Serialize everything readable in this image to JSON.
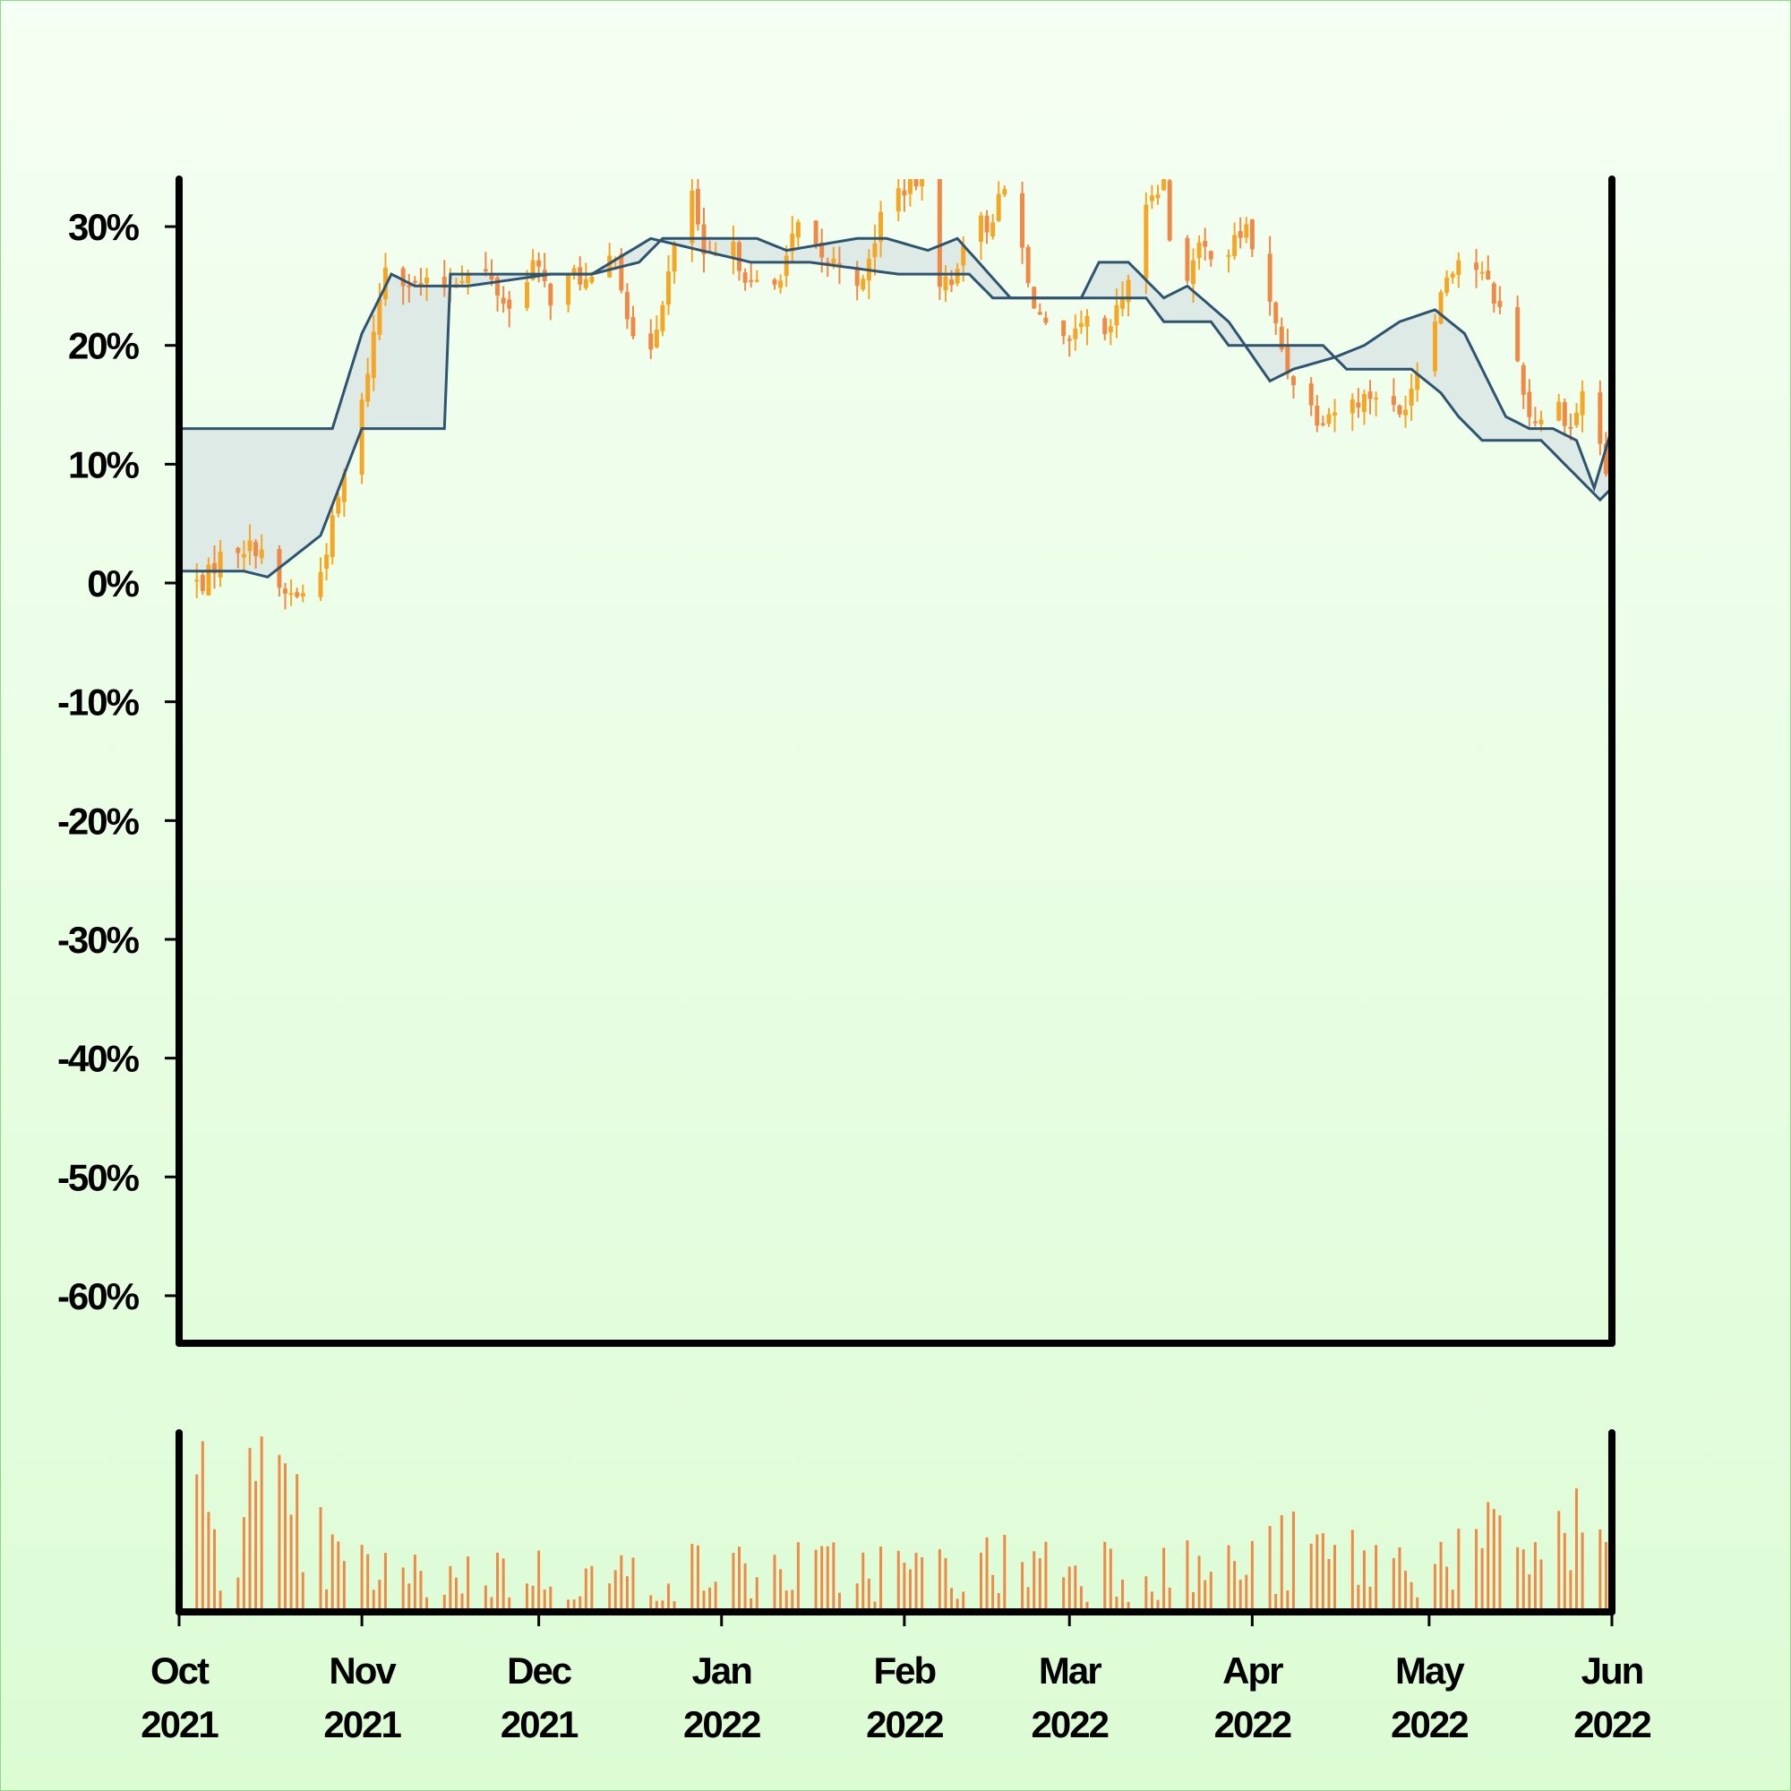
{
  "colors": {
    "up": "#f5a623",
    "down": "#ee8a45",
    "band_line": "#2e5470",
    "band_fill": "#dce8e4",
    "volume": "#ee8a45",
    "axis": "#000000"
  },
  "chart_data": [
    {
      "type": "candlestick",
      "title": "",
      "xlabel": "",
      "ylabel": "",
      "y_unit": "percent",
      "ylim": [
        -64,
        34
      ],
      "yticks": [
        30,
        20,
        10,
        0,
        -10,
        -20,
        -30,
        -40,
        -50,
        -60
      ],
      "ytick_labels": [
        "30%",
        "20%",
        "10%",
        "0%",
        "-10%",
        "-20%",
        "-30%",
        "-40%",
        "-50%",
        "-60%"
      ],
      "xlim": [
        "2021-10-01",
        "2022-06-01"
      ],
      "grid": false,
      "legend": "none",
      "price_path": [
        [
          "2021-10-01",
          0
        ],
        [
          "2021-10-05",
          0
        ],
        [
          "2021-10-09",
          3
        ],
        [
          "2021-10-15",
          3
        ],
        [
          "2021-10-18",
          -1
        ],
        [
          "2021-10-24",
          -1
        ],
        [
          "2021-10-26",
          3
        ],
        [
          "2021-11-01",
          15
        ],
        [
          "2021-11-05",
          27
        ],
        [
          "2021-11-10",
          25
        ],
        [
          "2021-11-15",
          25
        ],
        [
          "2021-11-18",
          26
        ],
        [
          "2021-11-22",
          26
        ],
        [
          "2021-11-26",
          23
        ],
        [
          "2021-11-30",
          27
        ],
        [
          "2021-12-03",
          24
        ],
        [
          "2021-12-07",
          26
        ],
        [
          "2021-12-10",
          25
        ],
        [
          "2021-12-14",
          28
        ],
        [
          "2021-12-17",
          20
        ],
        [
          "2021-12-20",
          20
        ],
        [
          "2021-12-24",
          28
        ],
        [
          "2021-12-27",
          33
        ],
        [
          "2021-12-29",
          27
        ],
        [
          "2022-01-03",
          28
        ],
        [
          "2022-01-06",
          25
        ],
        [
          "2022-01-10",
          25
        ],
        [
          "2022-01-14",
          30
        ],
        [
          "2022-01-18",
          27
        ],
        [
          "2022-01-22",
          27
        ],
        [
          "2022-01-25",
          25
        ],
        [
          "2022-01-28",
          31
        ],
        [
          "2022-01-31",
          33
        ],
        [
          "2022-02-04",
          34
        ],
        [
          "2022-02-06",
          26
        ],
        [
          "2022-02-09",
          25
        ],
        [
          "2022-02-12",
          31
        ],
        [
          "2022-02-15",
          30
        ],
        [
          "2022-02-19",
          34
        ],
        [
          "2022-02-22",
          25
        ],
        [
          "2022-02-26",
          20
        ],
        [
          "2022-03-01",
          20
        ],
        [
          "2022-03-04",
          22
        ],
        [
          "2022-03-06",
          19
        ],
        [
          "2022-03-10",
          24
        ],
        [
          "2022-03-15",
          33
        ],
        [
          "2022-03-17",
          34
        ],
        [
          "2022-03-19",
          24
        ],
        [
          "2022-03-23",
          28
        ],
        [
          "2022-03-28",
          28
        ],
        [
          "2022-03-31",
          30
        ],
        [
          "2022-04-03",
          25
        ],
        [
          "2022-04-07",
          18
        ],
        [
          "2022-04-12",
          14
        ],
        [
          "2022-04-17",
          15
        ],
        [
          "2022-04-22",
          16
        ],
        [
          "2022-04-26",
          14
        ],
        [
          "2022-04-29",
          18
        ],
        [
          "2022-05-04",
          26
        ],
        [
          "2022-05-07",
          28
        ],
        [
          "2022-05-11",
          25
        ],
        [
          "2022-05-15",
          21
        ],
        [
          "2022-05-18",
          14
        ],
        [
          "2022-05-20",
          14
        ],
        [
          "2022-05-23",
          15
        ],
        [
          "2022-05-25",
          13
        ],
        [
          "2022-05-27",
          16
        ],
        [
          "2022-05-29",
          14
        ],
        [
          "2022-06-01",
          7
        ]
      ],
      "band_upper": [
        [
          "2021-10-01",
          13
        ],
        [
          "2021-10-27",
          13
        ],
        [
          "2021-11-01",
          21
        ],
        [
          "2021-11-06",
          26
        ],
        [
          "2021-11-10",
          25
        ],
        [
          "2021-11-17",
          25
        ],
        [
          "2021-11-19",
          25
        ],
        [
          "2021-12-03",
          26
        ],
        [
          "2021-12-10",
          26
        ],
        [
          "2021-12-18",
          27
        ],
        [
          "2021-12-22",
          29
        ],
        [
          "2022-01-07",
          29
        ],
        [
          "2022-01-12",
          28
        ],
        [
          "2022-01-24",
          29
        ],
        [
          "2022-01-29",
          29
        ],
        [
          "2022-02-05",
          28
        ],
        [
          "2022-02-10",
          29
        ],
        [
          "2022-02-19",
          24
        ],
        [
          "2022-02-25",
          24
        ],
        [
          "2022-03-03",
          24
        ],
        [
          "2022-03-06",
          27
        ],
        [
          "2022-03-11",
          27
        ],
        [
          "2022-03-17",
          24
        ],
        [
          "2022-03-21",
          25
        ],
        [
          "2022-03-28",
          22
        ],
        [
          "2022-04-04",
          17
        ],
        [
          "2022-04-08",
          18
        ],
        [
          "2022-04-15",
          19
        ],
        [
          "2022-04-20",
          20
        ],
        [
          "2022-04-26",
          22
        ],
        [
          "2022-05-02",
          23
        ],
        [
          "2022-05-07",
          21
        ],
        [
          "2022-05-14",
          14
        ],
        [
          "2022-05-18",
          13
        ],
        [
          "2022-05-22",
          13
        ],
        [
          "2022-05-26",
          12
        ],
        [
          "2022-05-29",
          8
        ],
        [
          "2022-06-01",
          13
        ]
      ],
      "band_lower": [
        [
          "2021-10-01",
          1
        ],
        [
          "2021-10-12",
          1
        ],
        [
          "2021-10-16",
          0.5
        ],
        [
          "2021-10-25",
          4
        ],
        [
          "2021-11-01",
          13
        ],
        [
          "2021-11-15",
          13
        ],
        [
          "2021-11-16",
          26
        ],
        [
          "2021-12-04",
          26
        ],
        [
          "2021-12-10",
          26
        ],
        [
          "2021-12-20",
          29
        ],
        [
          "2022-01-06",
          27
        ],
        [
          "2022-01-16",
          27
        ],
        [
          "2022-01-31",
          26
        ],
        [
          "2022-02-12",
          26
        ],
        [
          "2022-02-16",
          24
        ],
        [
          "2022-02-24",
          24
        ],
        [
          "2022-03-04",
          24
        ],
        [
          "2022-03-14",
          24
        ],
        [
          "2022-03-17",
          22
        ],
        [
          "2022-03-25",
          22
        ],
        [
          "2022-03-28",
          20
        ],
        [
          "2022-04-07",
          20
        ],
        [
          "2022-04-13",
          20
        ],
        [
          "2022-04-17",
          18
        ],
        [
          "2022-04-28",
          18
        ],
        [
          "2022-05-03",
          16
        ],
        [
          "2022-05-06",
          14
        ],
        [
          "2022-05-10",
          12
        ],
        [
          "2022-05-20",
          12
        ],
        [
          "2022-05-24",
          10
        ],
        [
          "2022-05-30",
          7
        ],
        [
          "2022-06-01",
          8
        ]
      ]
    },
    {
      "type": "bar",
      "title": "",
      "xlabel": "",
      "ylabel": "",
      "xlim": [
        "2021-10-01",
        "2022-06-01"
      ],
      "xticks": [
        "2021-10-01",
        "2021-11-01",
        "2021-12-01",
        "2022-01-01",
        "2022-02-01",
        "2022-03-01",
        "2022-04-01",
        "2022-05-01",
        "2022-06-01"
      ],
      "xtick_labels": [
        [
          "Oct",
          "2021"
        ],
        [
          "Nov",
          "2021"
        ],
        [
          "Dec",
          "2021"
        ],
        [
          "Jan",
          "2022"
        ],
        [
          "Feb",
          "2022"
        ],
        [
          "Mar",
          "2022"
        ],
        [
          "Apr",
          "2022"
        ],
        [
          "May",
          "2022"
        ],
        [
          "Jun",
          "2022"
        ]
      ],
      "volume_profile": [
        [
          "2021-10-01",
          0.75
        ],
        [
          "2021-10-15",
          0.8
        ],
        [
          "2021-10-28",
          0.35
        ],
        [
          "2021-11-10",
          0.25
        ],
        [
          "2021-11-25",
          0.3
        ],
        [
          "2021-12-10",
          0.25
        ],
        [
          "2021-12-25",
          0.3
        ],
        [
          "2022-01-10",
          0.3
        ],
        [
          "2022-01-25",
          0.32
        ],
        [
          "2022-02-10",
          0.3
        ],
        [
          "2022-02-25",
          0.4
        ],
        [
          "2022-03-10",
          0.35
        ],
        [
          "2022-03-25",
          0.3
        ],
        [
          "2022-04-10",
          0.45
        ],
        [
          "2022-04-25",
          0.35
        ],
        [
          "2022-05-10",
          0.45
        ],
        [
          "2022-05-25",
          0.55
        ],
        [
          "2022-06-01",
          0.6
        ]
      ]
    }
  ]
}
